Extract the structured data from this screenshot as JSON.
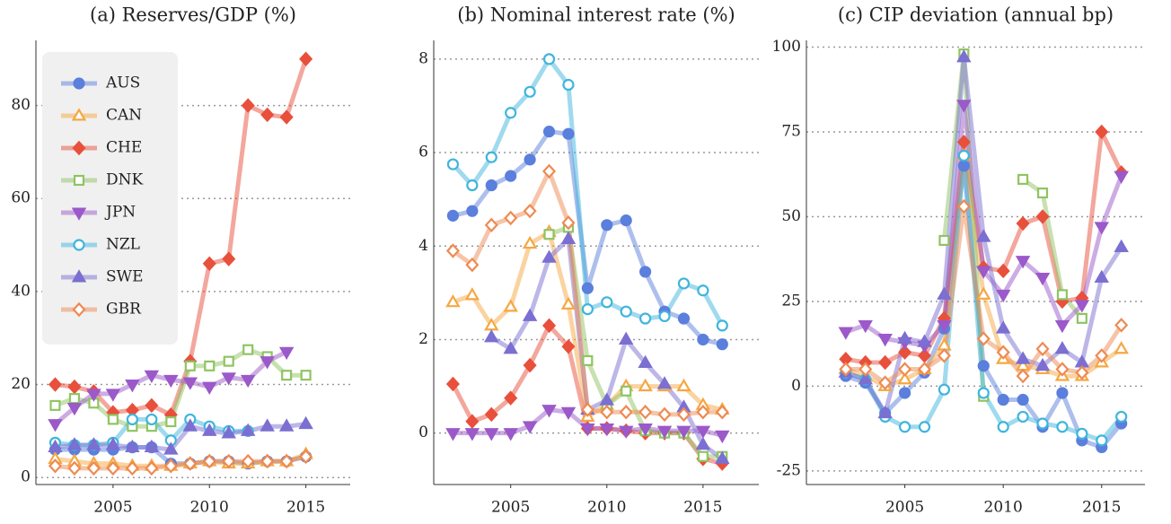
{
  "chart_data": [
    {
      "type": "line",
      "title": "(a) Reserves/GDP (%)",
      "legend": "upper left",
      "grid": true,
      "x": [
        2002,
        2003,
        2004,
        2005,
        2006,
        2007,
        2008,
        2009,
        2010,
        2011,
        2012,
        2013,
        2014,
        2015
      ],
      "xlim": [
        2001,
        2017.3
      ],
      "xticks": [
        2005,
        2010,
        2015
      ],
      "ylim": [
        -1.5,
        94
      ],
      "yticks": [
        0,
        20,
        40,
        60,
        80
      ],
      "series": [
        {
          "name": "AUS",
          "color": "#5b7fdc",
          "marker": "circle",
          "filled": true,
          "values": [
            6,
            6,
            6,
            6,
            6.5,
            6.5,
            3,
            3,
            3.5,
            3.5,
            3,
            3.5,
            3.5,
            4.5
          ]
        },
        {
          "name": "CAN",
          "color": "#f5a742",
          "marker": "triangle-up",
          "filled": false,
          "values": [
            4,
            3.5,
            3,
            3,
            2.5,
            2.5,
            2.5,
            3,
            3.5,
            3,
            3,
            3.5,
            3.5,
            5
          ]
        },
        {
          "name": "CHE",
          "color": "#e8503c",
          "marker": "diamond",
          "filled": true,
          "values": [
            20,
            19.5,
            18.5,
            14,
            14.5,
            15.5,
            13.5,
            25,
            46,
            47,
            80,
            78,
            77.5,
            90
          ]
        },
        {
          "name": "DNK",
          "color": "#8fc462",
          "marker": "square",
          "filled": false,
          "values": [
            15.5,
            17,
            16,
            12.5,
            11,
            11,
            12,
            24,
            24,
            25,
            27.5,
            26,
            22,
            22
          ]
        },
        {
          "name": "JPN",
          "color": "#9b59c9",
          "marker": "triangle-down",
          "filled": true,
          "values": [
            11.5,
            15,
            18,
            18,
            20,
            22,
            21,
            20.5,
            19.5,
            21.5,
            21,
            25,
            27,
            null
          ]
        },
        {
          "name": "NZL",
          "color": "#3fb5dd",
          "marker": "circle",
          "filled": false,
          "values": [
            7.5,
            7,
            7,
            7.5,
            12.5,
            12.5,
            8,
            12.5,
            11,
            10,
            10,
            null,
            null,
            null
          ]
        },
        {
          "name": "SWE",
          "color": "#7b6fd1",
          "marker": "triangle-up",
          "filled": true,
          "values": [
            6.5,
            7,
            7,
            7,
            6.5,
            6.5,
            6,
            11,
            10,
            9.5,
            10,
            11,
            11,
            11.5
          ]
        },
        {
          "name": "GBR",
          "color": "#ee8a52",
          "marker": "diamond",
          "filled": false,
          "values": [
            2.5,
            2,
            2,
            2,
            2,
            2,
            2.5,
            3,
            3.5,
            3.5,
            3.5,
            3.5,
            3.5,
            4.5
          ]
        }
      ]
    },
    {
      "type": "line",
      "title": "(b) Nominal interest rate (%)",
      "grid": true,
      "x": [
        2002,
        2003,
        2004,
        2005,
        2006,
        2007,
        2008,
        2009,
        2010,
        2011,
        2012,
        2013,
        2014,
        2015,
        2016
      ],
      "xlim": [
        2001,
        2017.9
      ],
      "xticks": [
        2005,
        2010,
        2015
      ],
      "ylim": [
        -1.1,
        8.4
      ],
      "yticks": [
        0,
        2,
        4,
        6,
        8
      ],
      "series": [
        {
          "color": "#5b7fdc",
          "marker": "circle",
          "filled": true,
          "values": [
            4.65,
            4.75,
            5.3,
            5.5,
            5.85,
            6.45,
            6.4,
            3.1,
            4.45,
            4.55,
            3.45,
            2.6,
            2.45,
            2.0,
            1.9
          ]
        },
        {
          "color": "#f5a742",
          "marker": "triangle-up",
          "filled": false,
          "values": [
            2.8,
            2.95,
            2.3,
            2.7,
            4.05,
            4.3,
            2.75,
            0.35,
            0.6,
            1.0,
            1.0,
            1.0,
            1.0,
            0.6,
            0.5
          ]
        },
        {
          "color": "#e8503c",
          "marker": "diamond",
          "filled": true,
          "values": [
            1.05,
            0.25,
            0.4,
            0.75,
            1.45,
            2.3,
            1.85,
            0.1,
            0.1,
            0.05,
            0,
            0,
            0,
            -0.55,
            -0.65
          ]
        },
        {
          "color": "#8fc462",
          "marker": "square",
          "filled": false,
          "values": [
            null,
            null,
            null,
            null,
            null,
            4.25,
            4.4,
            1.55,
            0.6,
            0.9,
            0.05,
            0,
            0,
            -0.5,
            -0.5
          ]
        },
        {
          "color": "#9b59c9",
          "marker": "triangle-down",
          "filled": true,
          "values": [
            0,
            0,
            0,
            0,
            0.15,
            0.5,
            0.45,
            0.1,
            0.1,
            0.05,
            0.1,
            0.05,
            0.05,
            0.05,
            -0.05
          ]
        },
        {
          "color": "#3fb5dd",
          "marker": "circle",
          "filled": false,
          "values": [
            5.75,
            5.3,
            5.9,
            6.85,
            7.3,
            8.0,
            7.45,
            2.65,
            2.8,
            2.6,
            2.45,
            2.5,
            3.2,
            3.05,
            2.3
          ]
        },
        {
          "color": "#7b6fd1",
          "marker": "triangle-up",
          "filled": true,
          "values": [
            null,
            null,
            2.05,
            1.8,
            2.5,
            3.75,
            4.15,
            0.5,
            0.7,
            2.0,
            1.5,
            1.05,
            0.55,
            -0.25,
            -0.55
          ]
        },
        {
          "color": "#ee8a52",
          "marker": "diamond",
          "filled": false,
          "values": [
            3.9,
            3.6,
            4.45,
            4.6,
            4.75,
            5.6,
            4.5,
            0.5,
            0.45,
            0.45,
            0.45,
            0.4,
            0.4,
            0.45,
            0.45
          ]
        }
      ]
    },
    {
      "type": "line",
      "title": "(c) CIP deviation (annual bp)",
      "grid": true,
      "x": [
        2002,
        2003,
        2004,
        2005,
        2006,
        2007,
        2008,
        2009,
        2010,
        2011,
        2012,
        2013,
        2014,
        2015,
        2016
      ],
      "xlim": [
        2000,
        2017.2
      ],
      "xticks": [
        2005,
        2010,
        2015
      ],
      "ylim": [
        -29,
        102
      ],
      "yticks": [
        -25,
        0,
        25,
        50,
        75,
        100
      ],
      "series": [
        {
          "color": "#5b7fdc",
          "marker": "circle",
          "filled": true,
          "values": [
            3,
            1,
            -8,
            -2,
            4,
            17,
            65,
            6,
            -4,
            -4,
            -12,
            -2,
            -16,
            -18,
            -11
          ]
        },
        {
          "color": "#f5a742",
          "marker": "triangle-up",
          "filled": false,
          "values": [
            5,
            3,
            0,
            2,
            5,
            12,
            68,
            27,
            8,
            6,
            5,
            3,
            3,
            7,
            11
          ]
        },
        {
          "color": "#e8503c",
          "marker": "diamond",
          "filled": true,
          "values": [
            8,
            7,
            7,
            10,
            9,
            20,
            72,
            35,
            34,
            48,
            50,
            25,
            26,
            75,
            63
          ]
        },
        {
          "color": "#8fc462",
          "marker": "square",
          "filled": false,
          "values": [
            null,
            null,
            null,
            null,
            null,
            43,
            98,
            -3,
            null,
            61,
            57,
            27,
            20,
            null,
            null
          ]
        },
        {
          "color": "#9b59c9",
          "marker": "triangle-down",
          "filled": true,
          "values": [
            16,
            18,
            14,
            13,
            12,
            18,
            83,
            34,
            27,
            37,
            32,
            18,
            24,
            47,
            62
          ]
        },
        {
          "color": "#3fb5dd",
          "marker": "circle",
          "filled": false,
          "values": [
            4,
            2,
            -9,
            -12,
            -12,
            -1,
            68,
            -2,
            -12,
            -9,
            -11,
            -12,
            -14,
            -16,
            -9
          ]
        },
        {
          "color": "#7b6fd1",
          "marker": "triangle-up",
          "filled": true,
          "values": [
            4,
            2,
            -8,
            14,
            13,
            27,
            97,
            44,
            17,
            8,
            6,
            11,
            7,
            32,
            41
          ]
        },
        {
          "color": "#ee8a52",
          "marker": "diamond",
          "filled": false,
          "values": [
            5,
            5,
            1,
            5,
            5,
            9,
            53,
            14,
            10,
            3,
            11,
            5,
            4,
            9,
            18
          ]
        }
      ]
    }
  ]
}
